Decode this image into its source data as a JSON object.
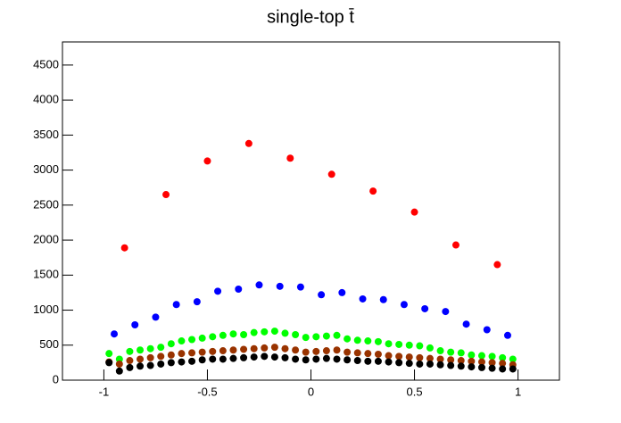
{
  "chart_data": {
    "type": "scatter",
    "title": "single-top t̄",
    "xlim": [
      -1.2,
      1.2
    ],
    "ylim": [
      0,
      4830
    ],
    "xticks": [
      -1,
      -0.5,
      0,
      0.5,
      1
    ],
    "yticks": [
      0,
      500,
      1000,
      1500,
      2000,
      2500,
      3000,
      3500,
      4000,
      4500
    ],
    "series": [
      {
        "color": "#ff0000",
        "x": [
          -0.9,
          -0.7,
          -0.5,
          -0.3,
          -0.1,
          0.1,
          0.3,
          0.5,
          0.7,
          0.9
        ],
        "values": [
          1890,
          2650,
          3130,
          3380,
          3170,
          2940,
          2700,
          2400,
          1930,
          1650
        ]
      },
      {
        "color": "#0000ff",
        "x": [
          -0.95,
          -0.85,
          -0.75,
          -0.65,
          -0.55,
          -0.45,
          -0.35,
          -0.25,
          -0.15,
          -0.05,
          0.05,
          0.15,
          0.25,
          0.35,
          0.45,
          0.55,
          0.65,
          0.75,
          0.85,
          0.95
        ],
        "values": [
          660,
          790,
          900,
          1080,
          1120,
          1270,
          1300,
          1360,
          1340,
          1330,
          1220,
          1250,
          1160,
          1150,
          1080,
          1020,
          980,
          800,
          720,
          640
        ]
      },
      {
        "color": "#00ff00",
        "x": [
          -0.975,
          -0.925,
          -0.875,
          -0.825,
          -0.775,
          -0.725,
          -0.675,
          -0.625,
          -0.575,
          -0.525,
          -0.475,
          -0.425,
          -0.375,
          -0.325,
          -0.275,
          -0.225,
          -0.175,
          -0.125,
          -0.075,
          -0.025,
          0.025,
          0.075,
          0.125,
          0.175,
          0.225,
          0.275,
          0.325,
          0.375,
          0.425,
          0.475,
          0.525,
          0.575,
          0.625,
          0.675,
          0.725,
          0.775,
          0.825,
          0.875,
          0.925,
          0.975
        ],
        "values": [
          380,
          300,
          410,
          430,
          450,
          470,
          520,
          560,
          580,
          600,
          620,
          640,
          660,
          650,
          680,
          690,
          700,
          670,
          650,
          610,
          620,
          630,
          640,
          590,
          570,
          560,
          550,
          520,
          510,
          500,
          490,
          460,
          420,
          400,
          390,
          360,
          350,
          340,
          320,
          300
        ]
      },
      {
        "color": "#993300",
        "x": [
          -0.975,
          -0.925,
          -0.875,
          -0.825,
          -0.775,
          -0.725,
          -0.675,
          -0.625,
          -0.575,
          -0.525,
          -0.475,
          -0.425,
          -0.375,
          -0.325,
          -0.275,
          -0.225,
          -0.175,
          -0.125,
          -0.075,
          -0.025,
          0.025,
          0.075,
          0.125,
          0.175,
          0.225,
          0.275,
          0.325,
          0.375,
          0.425,
          0.475,
          0.525,
          0.575,
          0.625,
          0.675,
          0.725,
          0.775,
          0.825,
          0.875,
          0.925,
          0.975
        ],
        "values": [
          260,
          230,
          280,
          300,
          320,
          340,
          360,
          380,
          390,
          400,
          410,
          420,
          430,
          440,
          450,
          460,
          470,
          450,
          430,
          400,
          410,
          420,
          430,
          400,
          390,
          380,
          370,
          350,
          340,
          330,
          320,
          310,
          300,
          290,
          280,
          270,
          260,
          250,
          240,
          220
        ]
      },
      {
        "color": "#000000",
        "x": [
          -0.975,
          -0.925,
          -0.875,
          -0.825,
          -0.775,
          -0.725,
          -0.675,
          -0.625,
          -0.575,
          -0.525,
          -0.475,
          -0.425,
          -0.375,
          -0.325,
          -0.275,
          -0.225,
          -0.175,
          -0.125,
          -0.075,
          -0.025,
          0.025,
          0.075,
          0.125,
          0.175,
          0.225,
          0.275,
          0.325,
          0.375,
          0.425,
          0.475,
          0.525,
          0.575,
          0.625,
          0.675,
          0.725,
          0.775,
          0.825,
          0.875,
          0.925,
          0.975
        ],
        "values": [
          250,
          130,
          180,
          200,
          210,
          230,
          250,
          260,
          270,
          290,
          300,
          300,
          310,
          320,
          330,
          340,
          330,
          320,
          300,
          290,
          300,
          310,
          300,
          290,
          280,
          270,
          270,
          260,
          250,
          240,
          230,
          230,
          220,
          210,
          200,
          190,
          180,
          170,
          160,
          160
        ]
      }
    ]
  }
}
